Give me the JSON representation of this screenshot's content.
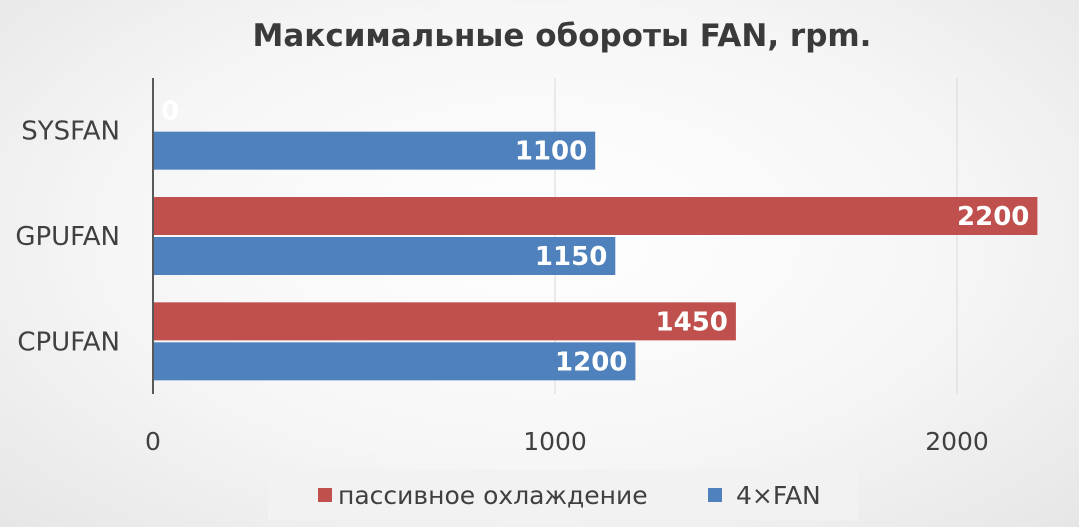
{
  "chart_data": {
    "type": "bar",
    "orientation": "horizontal",
    "title": "Максимальные обороты FAN, rpm.",
    "categories": [
      "SYSFAN",
      "GPUFAN",
      "CPUFAN"
    ],
    "series": [
      {
        "name": "пассивное охлаждение",
        "color": "#c0504d",
        "values": [
          0,
          2200,
          1450
        ]
      },
      {
        "name": "4×FAN",
        "color": "#4f81bd",
        "values": [
          1100,
          1150,
          1200
        ]
      }
    ],
    "xlim": [
      0,
      2200
    ],
    "xticks": [
      0,
      1000,
      2000
    ],
    "grid": true,
    "data_labels": true,
    "legend_position": "bottom"
  }
}
